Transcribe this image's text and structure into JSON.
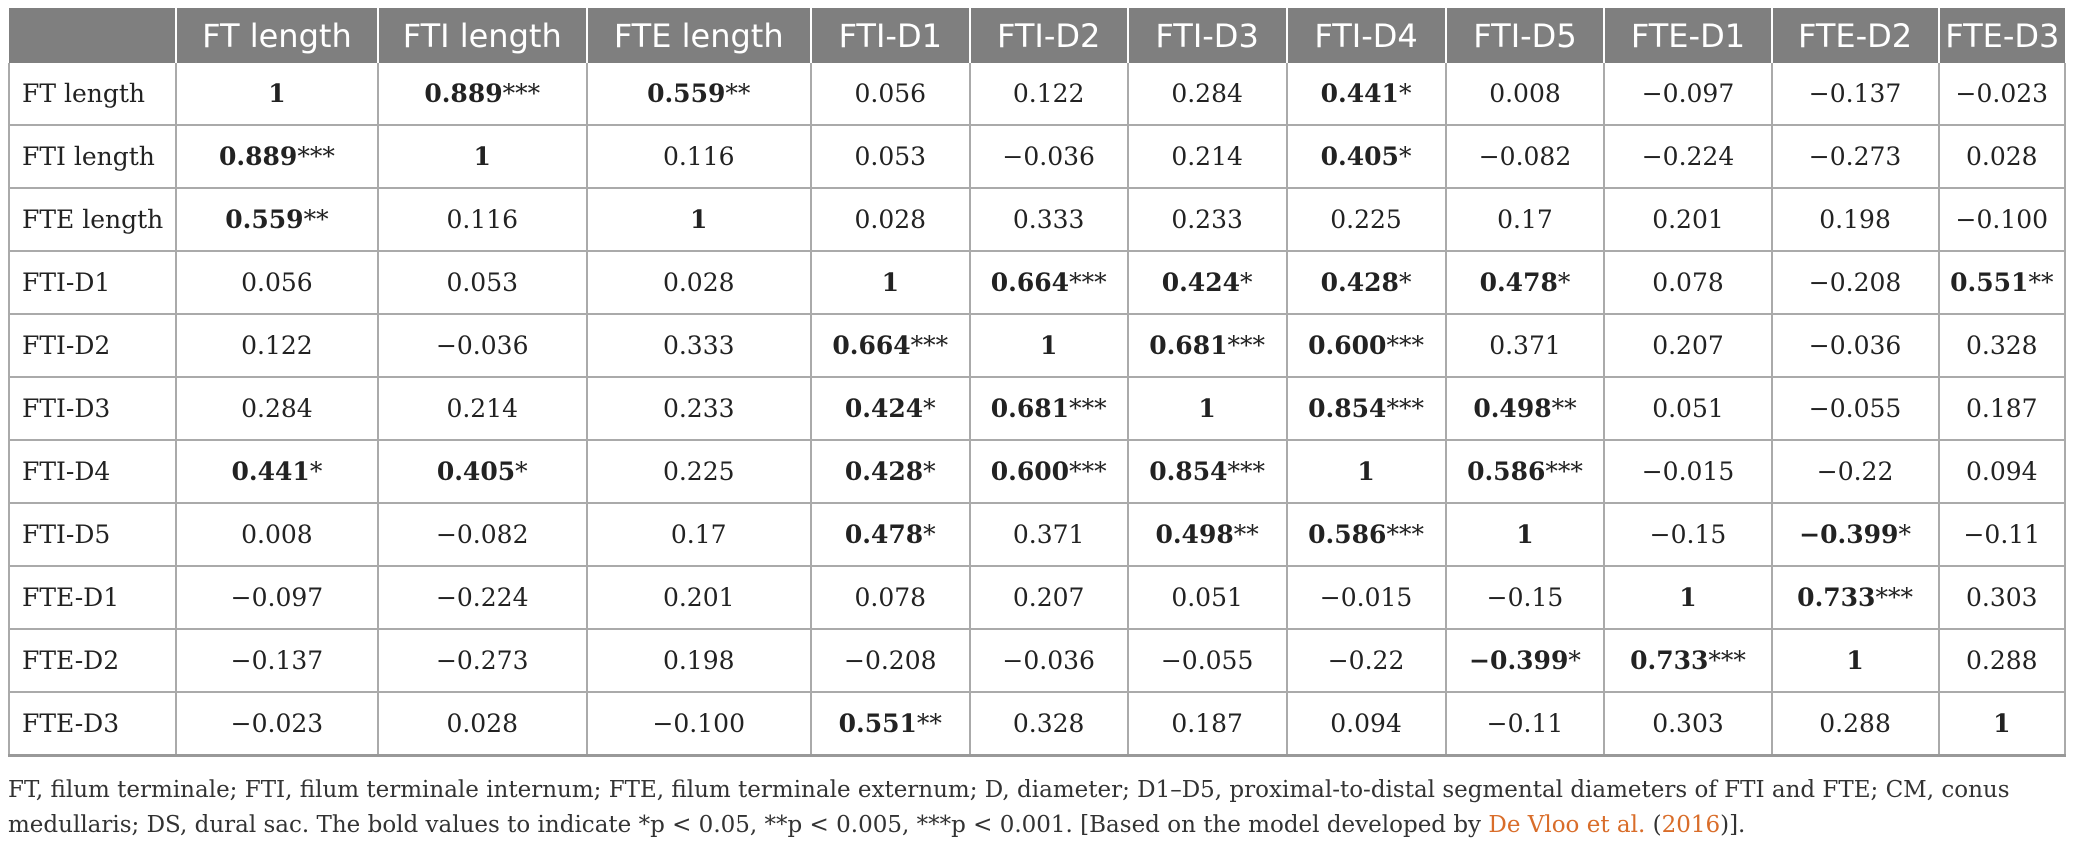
{
  "table": {
    "headers": [
      "",
      "FT length",
      "FTI length",
      "FTE length",
      "FTI-D1",
      "FTI-D2",
      "FTI-D3",
      "FTI-D4",
      "FTI-D5",
      "FTE-D1",
      "FTE-D2",
      "FTE-D3"
    ],
    "rows": [
      {
        "label": "FT length",
        "cells": [
          {
            "v": "1",
            "b": true,
            "s": ""
          },
          {
            "v": "0.889",
            "b": true,
            "s": "***"
          },
          {
            "v": "0.559",
            "b": true,
            "s": "**"
          },
          {
            "v": "0.056",
            "b": false,
            "s": ""
          },
          {
            "v": "0.122",
            "b": false,
            "s": ""
          },
          {
            "v": "0.284",
            "b": false,
            "s": ""
          },
          {
            "v": "0.441",
            "b": true,
            "s": "*"
          },
          {
            "v": "0.008",
            "b": false,
            "s": ""
          },
          {
            "v": "−0.097",
            "b": false,
            "s": ""
          },
          {
            "v": "−0.137",
            "b": false,
            "s": ""
          },
          {
            "v": "−0.023",
            "b": false,
            "s": ""
          }
        ]
      },
      {
        "label": "FTI length",
        "cells": [
          {
            "v": "0.889",
            "b": true,
            "s": "***"
          },
          {
            "v": "1",
            "b": true,
            "s": ""
          },
          {
            "v": "0.116",
            "b": false,
            "s": ""
          },
          {
            "v": "0.053",
            "b": false,
            "s": ""
          },
          {
            "v": "−0.036",
            "b": false,
            "s": ""
          },
          {
            "v": "0.214",
            "b": false,
            "s": ""
          },
          {
            "v": "0.405",
            "b": true,
            "s": "*"
          },
          {
            "v": "−0.082",
            "b": false,
            "s": ""
          },
          {
            "v": "−0.224",
            "b": false,
            "s": ""
          },
          {
            "v": "−0.273",
            "b": false,
            "s": ""
          },
          {
            "v": "0.028",
            "b": false,
            "s": ""
          }
        ]
      },
      {
        "label": "FTE length",
        "cells": [
          {
            "v": "0.559",
            "b": true,
            "s": "**"
          },
          {
            "v": "0.116",
            "b": false,
            "s": ""
          },
          {
            "v": "1",
            "b": true,
            "s": ""
          },
          {
            "v": "0.028",
            "b": false,
            "s": ""
          },
          {
            "v": "0.333",
            "b": false,
            "s": ""
          },
          {
            "v": "0.233",
            "b": false,
            "s": ""
          },
          {
            "v": "0.225",
            "b": false,
            "s": ""
          },
          {
            "v": "0.17",
            "b": false,
            "s": ""
          },
          {
            "v": "0.201",
            "b": false,
            "s": ""
          },
          {
            "v": "0.198",
            "b": false,
            "s": ""
          },
          {
            "v": "−0.100",
            "b": false,
            "s": ""
          }
        ]
      },
      {
        "label": "FTI-D1",
        "cells": [
          {
            "v": "0.056",
            "b": false,
            "s": ""
          },
          {
            "v": "0.053",
            "b": false,
            "s": ""
          },
          {
            "v": "0.028",
            "b": false,
            "s": ""
          },
          {
            "v": "1",
            "b": true,
            "s": ""
          },
          {
            "v": "0.664",
            "b": true,
            "s": "***"
          },
          {
            "v": "0.424",
            "b": true,
            "s": "*"
          },
          {
            "v": "0.428",
            "b": true,
            "s": "*"
          },
          {
            "v": "0.478",
            "b": true,
            "s": "*"
          },
          {
            "v": "0.078",
            "b": false,
            "s": ""
          },
          {
            "v": "−0.208",
            "b": false,
            "s": ""
          },
          {
            "v": "0.551",
            "b": true,
            "s": "**"
          }
        ]
      },
      {
        "label": "FTI-D2",
        "cells": [
          {
            "v": "0.122",
            "b": false,
            "s": ""
          },
          {
            "v": "−0.036",
            "b": false,
            "s": ""
          },
          {
            "v": "0.333",
            "b": false,
            "s": ""
          },
          {
            "v": "0.664",
            "b": true,
            "s": "***"
          },
          {
            "v": "1",
            "b": true,
            "s": ""
          },
          {
            "v": "0.681",
            "b": true,
            "s": "***"
          },
          {
            "v": "0.600",
            "b": true,
            "s": "***"
          },
          {
            "v": "0.371",
            "b": false,
            "s": ""
          },
          {
            "v": "0.207",
            "b": false,
            "s": ""
          },
          {
            "v": "−0.036",
            "b": false,
            "s": ""
          },
          {
            "v": "0.328",
            "b": false,
            "s": ""
          }
        ]
      },
      {
        "label": "FTI-D3",
        "cells": [
          {
            "v": "0.284",
            "b": false,
            "s": ""
          },
          {
            "v": "0.214",
            "b": false,
            "s": ""
          },
          {
            "v": "0.233",
            "b": false,
            "s": ""
          },
          {
            "v": "0.424",
            "b": true,
            "s": "*"
          },
          {
            "v": "0.681",
            "b": true,
            "s": "***"
          },
          {
            "v": "1",
            "b": true,
            "s": ""
          },
          {
            "v": "0.854",
            "b": true,
            "s": "***"
          },
          {
            "v": "0.498",
            "b": true,
            "s": "**"
          },
          {
            "v": "0.051",
            "b": false,
            "s": ""
          },
          {
            "v": "−0.055",
            "b": false,
            "s": ""
          },
          {
            "v": "0.187",
            "b": false,
            "s": ""
          }
        ]
      },
      {
        "label": "FTI-D4",
        "cells": [
          {
            "v": "0.441",
            "b": true,
            "s": "*"
          },
          {
            "v": "0.405",
            "b": true,
            "s": "*"
          },
          {
            "v": "0.225",
            "b": false,
            "s": ""
          },
          {
            "v": "0.428",
            "b": true,
            "s": "*"
          },
          {
            "v": "0.600",
            "b": true,
            "s": "***"
          },
          {
            "v": "0.854",
            "b": true,
            "s": "***"
          },
          {
            "v": "1",
            "b": true,
            "s": ""
          },
          {
            "v": "0.586",
            "b": true,
            "s": "***"
          },
          {
            "v": "−0.015",
            "b": false,
            "s": ""
          },
          {
            "v": "−0.22",
            "b": false,
            "s": ""
          },
          {
            "v": "0.094",
            "b": false,
            "s": ""
          }
        ]
      },
      {
        "label": "FTI-D5",
        "cells": [
          {
            "v": "0.008",
            "b": false,
            "s": ""
          },
          {
            "v": "−0.082",
            "b": false,
            "s": ""
          },
          {
            "v": "0.17",
            "b": false,
            "s": ""
          },
          {
            "v": "0.478",
            "b": true,
            "s": "*"
          },
          {
            "v": "0.371",
            "b": false,
            "s": ""
          },
          {
            "v": "0.498",
            "b": true,
            "s": "**"
          },
          {
            "v": "0.586",
            "b": true,
            "s": "***"
          },
          {
            "v": "1",
            "b": true,
            "s": ""
          },
          {
            "v": "−0.15",
            "b": false,
            "s": ""
          },
          {
            "v": "−0.399",
            "b": true,
            "s": "*"
          },
          {
            "v": "−0.11",
            "b": false,
            "s": ""
          }
        ]
      },
      {
        "label": "FTE-D1",
        "cells": [
          {
            "v": "−0.097",
            "b": false,
            "s": ""
          },
          {
            "v": "−0.224",
            "b": false,
            "s": ""
          },
          {
            "v": "0.201",
            "b": false,
            "s": ""
          },
          {
            "v": "0.078",
            "b": false,
            "s": ""
          },
          {
            "v": "0.207",
            "b": false,
            "s": ""
          },
          {
            "v": "0.051",
            "b": false,
            "s": ""
          },
          {
            "v": "−0.015",
            "b": false,
            "s": ""
          },
          {
            "v": "−0.15",
            "b": false,
            "s": ""
          },
          {
            "v": "1",
            "b": true,
            "s": ""
          },
          {
            "v": "0.733",
            "b": true,
            "s": "***"
          },
          {
            "v": "0.303",
            "b": false,
            "s": ""
          }
        ]
      },
      {
        "label": "FTE-D2",
        "cells": [
          {
            "v": "−0.137",
            "b": false,
            "s": ""
          },
          {
            "v": "−0.273",
            "b": false,
            "s": ""
          },
          {
            "v": "0.198",
            "b": false,
            "s": ""
          },
          {
            "v": "−0.208",
            "b": false,
            "s": ""
          },
          {
            "v": "−0.036",
            "b": false,
            "s": ""
          },
          {
            "v": "−0.055",
            "b": false,
            "s": ""
          },
          {
            "v": "−0.22",
            "b": false,
            "s": ""
          },
          {
            "v": "−0.399",
            "b": true,
            "s": "*"
          },
          {
            "v": "0.733",
            "b": true,
            "s": "***"
          },
          {
            "v": "1",
            "b": true,
            "s": ""
          },
          {
            "v": "0.288",
            "b": false,
            "s": ""
          }
        ]
      },
      {
        "label": "FTE-D3",
        "cells": [
          {
            "v": "−0.023",
            "b": false,
            "s": ""
          },
          {
            "v": "0.028",
            "b": false,
            "s": ""
          },
          {
            "v": "−0.100",
            "b": false,
            "s": ""
          },
          {
            "v": "0.551",
            "b": true,
            "s": "**"
          },
          {
            "v": "0.328",
            "b": false,
            "s": ""
          },
          {
            "v": "0.187",
            "b": false,
            "s": ""
          },
          {
            "v": "0.094",
            "b": false,
            "s": ""
          },
          {
            "v": "−0.11",
            "b": false,
            "s": ""
          },
          {
            "v": "0.303",
            "b": false,
            "s": ""
          },
          {
            "v": "0.288",
            "b": false,
            "s": ""
          },
          {
            "v": "1",
            "b": true,
            "s": ""
          }
        ]
      }
    ]
  },
  "caption": {
    "text_before": "FT, filum terminale; FTI, filum terminale internum; FTE, filum terminale externum; D, diameter; D1–D5, proximal-to-distal segmental diameters of FTI and FTE; CM, conus medullaris; DS, dural sac. The bold values to indicate *p < 0.05, **p < 0.005, ***p < 0.001. [Based on the model developed by ",
    "link_text": "De Vloo et al.",
    "text_middle": " (",
    "link_year": "2016",
    "text_after": ")]."
  },
  "colors": {
    "header_bg": "#7f7f7f",
    "header_text": "#ffffff",
    "link": "#d96d2a",
    "grid": "#aaaaaa"
  }
}
